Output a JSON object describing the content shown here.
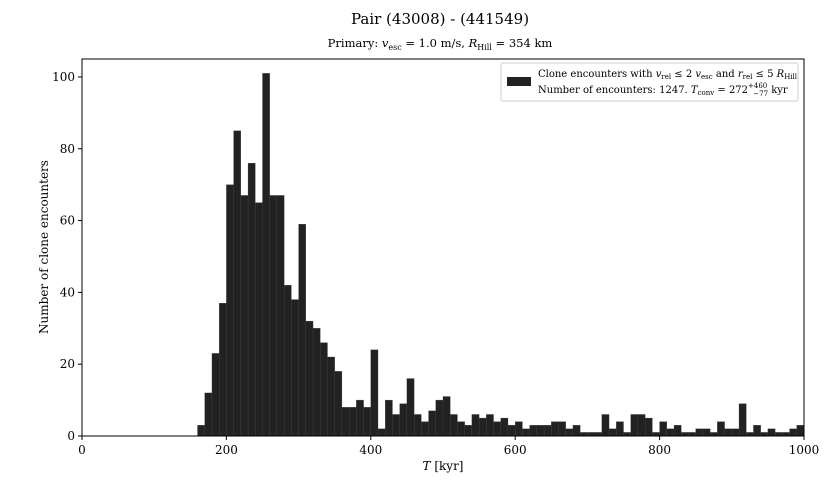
{
  "chart_data": {
    "type": "bar",
    "title": "Pair (43008) - (441549)",
    "subtitle": "Primary: v_esc = 1.0 m/s, R_Hill = 354 km",
    "xlabel": "T [kyr]",
    "ylabel": "Number of clone encounters",
    "xlim": [
      0,
      1000
    ],
    "ylim": [
      0,
      105
    ],
    "xticks": [
      0,
      200,
      400,
      600,
      800,
      1000
    ],
    "yticks": [
      0,
      20,
      40,
      60,
      80,
      100
    ],
    "bin_width": 10,
    "bin_starts": [
      160,
      170,
      180,
      190,
      200,
      210,
      220,
      230,
      240,
      250,
      260,
      270,
      280,
      290,
      300,
      310,
      320,
      330,
      340,
      350,
      360,
      370,
      380,
      390,
      400,
      410,
      420,
      430,
      440,
      450,
      460,
      470,
      480,
      490,
      500,
      510,
      520,
      530,
      540,
      550,
      560,
      570,
      580,
      590,
      600,
      610,
      620,
      630,
      640,
      650,
      660,
      670,
      680,
      690,
      700,
      710,
      720,
      730,
      740,
      750,
      760,
      770,
      780,
      790,
      800,
      810,
      820,
      830,
      840,
      850,
      860,
      870,
      880,
      890,
      900,
      910,
      920,
      930,
      940,
      950,
      960,
      970,
      980,
      990
    ],
    "values": [
      3,
      12,
      23,
      37,
      70,
      85,
      67,
      76,
      65,
      101,
      67,
      67,
      42,
      38,
      59,
      32,
      30,
      26,
      22,
      18,
      8,
      8,
      10,
      8,
      24,
      2,
      10,
      6,
      9,
      16,
      6,
      4,
      7,
      10,
      11,
      6,
      4,
      3,
      6,
      5,
      6,
      4,
      5,
      3,
      4,
      2,
      3,
      3,
      3,
      4,
      4,
      2,
      3,
      1,
      1,
      1,
      6,
      2,
      4,
      1,
      6,
      6,
      5,
      1,
      4,
      2,
      3,
      1,
      1,
      2,
      2,
      1,
      4,
      2,
      2,
      9,
      1,
      3,
      1,
      2,
      1,
      1,
      2,
      3
    ],
    "color": "#222222",
    "legend": {
      "position": "top-right",
      "label": "Clone encounters with v_rel ≤ 2 v_esc and r_rel ≤ 5 R_Hill",
      "note": "Number of encounters: 1247. T_conv = 272 +460 −77 kyr"
    }
  }
}
